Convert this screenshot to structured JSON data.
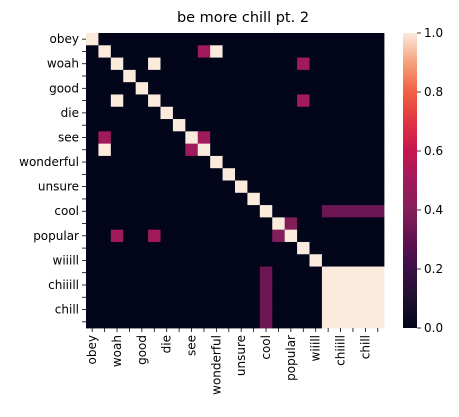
{
  "chart_data": {
    "type": "heatmap",
    "title": "be more chill pt. 2",
    "row_labels": [
      "obey",
      "",
      "woah",
      "",
      "good",
      "",
      "die",
      "",
      "see",
      "",
      "wonderful",
      "",
      "unsure",
      "",
      "cool",
      "",
      "popular",
      "",
      "wiiill",
      "",
      "chiiill",
      "",
      "chill",
      ""
    ],
    "col_labels": [
      "obey",
      "",
      "woah",
      "",
      "good",
      "",
      "die",
      "",
      "see",
      "",
      "wonderful",
      "",
      "unsure",
      "",
      "cool",
      "",
      "popular",
      "",
      "wiiill",
      "",
      "chiiill",
      "",
      "chill",
      ""
    ],
    "values": [
      [
        1,
        0,
        0,
        0,
        0,
        0,
        0,
        0,
        0,
        0,
        0,
        0,
        0,
        0,
        0,
        0,
        0,
        0,
        0,
        0,
        0,
        0,
        0,
        0
      ],
      [
        0,
        1,
        0,
        0,
        0,
        0,
        0,
        0,
        0,
        0.5,
        1,
        0,
        0,
        0,
        0,
        0,
        0,
        0,
        0,
        0,
        0,
        0,
        0,
        0
      ],
      [
        0,
        0,
        1,
        0,
        0,
        1,
        0,
        0,
        0,
        0,
        0,
        0,
        0,
        0,
        0,
        0,
        0,
        0.5,
        0,
        0,
        0,
        0,
        0,
        0
      ],
      [
        0,
        0,
        0,
        1,
        0,
        0,
        0,
        0,
        0,
        0,
        0,
        0,
        0,
        0,
        0,
        0,
        0,
        0,
        0,
        0,
        0,
        0,
        0,
        0
      ],
      [
        0,
        0,
        0,
        0,
        1,
        0,
        0,
        0,
        0,
        0,
        0,
        0,
        0,
        0,
        0,
        0,
        0,
        0,
        0,
        0,
        0,
        0,
        0,
        0
      ],
      [
        0,
        0,
        1,
        0,
        0,
        1,
        0,
        0,
        0,
        0,
        0,
        0,
        0,
        0,
        0,
        0,
        0,
        0.5,
        0,
        0,
        0,
        0,
        0,
        0
      ],
      [
        0,
        0,
        0,
        0,
        0,
        0,
        1,
        0,
        0,
        0,
        0,
        0,
        0,
        0,
        0,
        0,
        0,
        0,
        0,
        0,
        0,
        0,
        0,
        0
      ],
      [
        0,
        0,
        0,
        0,
        0,
        0,
        0,
        1,
        0,
        0,
        0,
        0,
        0,
        0,
        0,
        0,
        0,
        0,
        0,
        0,
        0,
        0,
        0,
        0
      ],
      [
        0,
        0.5,
        0,
        0,
        0,
        0,
        0,
        0,
        1,
        0.5,
        0,
        0,
        0,
        0,
        0,
        0,
        0,
        0,
        0,
        0,
        0,
        0,
        0,
        0
      ],
      [
        0,
        1,
        0,
        0,
        0,
        0,
        0,
        0,
        0.5,
        1,
        0,
        0,
        0,
        0,
        0,
        0,
        0,
        0,
        0,
        0,
        0,
        0,
        0,
        0
      ],
      [
        0,
        0,
        0,
        0,
        0,
        0,
        0,
        0,
        0,
        0,
        1,
        0,
        0,
        0,
        0,
        0,
        0,
        0,
        0,
        0,
        0,
        0,
        0,
        0
      ],
      [
        0,
        0,
        0,
        0,
        0,
        0,
        0,
        0,
        0,
        0,
        0,
        1,
        0,
        0,
        0,
        0,
        0,
        0,
        0,
        0,
        0,
        0,
        0,
        0
      ],
      [
        0,
        0,
        0,
        0,
        0,
        0,
        0,
        0,
        0,
        0,
        0,
        0,
        1,
        0,
        0,
        0,
        0,
        0,
        0,
        0,
        0,
        0,
        0,
        0
      ],
      [
        0,
        0,
        0,
        0,
        0,
        0,
        0,
        0,
        0,
        0,
        0,
        0,
        0,
        1,
        0,
        0,
        0,
        0,
        0,
        0,
        0,
        0,
        0,
        0
      ],
      [
        0,
        0,
        0,
        0,
        0,
        0,
        0,
        0,
        0,
        0,
        0,
        0,
        0,
        0,
        1,
        0,
        0,
        0,
        0,
        0.33,
        0.33,
        0.33,
        0.33,
        0.33
      ],
      [
        0,
        0,
        0,
        0,
        0,
        0,
        0,
        0,
        0,
        0,
        0,
        0,
        0,
        0,
        0,
        1,
        0.4,
        0,
        0,
        0,
        0,
        0,
        0,
        0
      ],
      [
        0,
        0,
        0.5,
        0,
        0,
        0.5,
        0,
        0,
        0,
        0,
        0,
        0,
        0,
        0,
        0,
        0.4,
        1,
        0,
        0,
        0,
        0,
        0,
        0,
        0
      ],
      [
        0,
        0,
        0,
        0,
        0,
        0,
        0,
        0,
        0,
        0,
        0,
        0,
        0,
        0,
        0,
        0,
        0,
        1,
        0,
        0,
        0,
        0,
        0,
        0
      ],
      [
        0,
        0,
        0,
        0,
        0,
        0,
        0,
        0,
        0,
        0,
        0,
        0,
        0,
        0,
        0,
        0,
        0,
        0,
        1,
        0,
        0,
        0,
        0,
        0
      ],
      [
        0,
        0,
        0,
        0,
        0,
        0,
        0,
        0,
        0,
        0,
        0,
        0,
        0,
        0,
        0.33,
        0,
        0,
        0,
        0,
        1,
        1,
        1,
        1,
        1
      ],
      [
        0,
        0,
        0,
        0,
        0,
        0,
        0,
        0,
        0,
        0,
        0,
        0,
        0,
        0,
        0.33,
        0,
        0,
        0,
        0,
        1,
        1,
        1,
        1,
        1
      ],
      [
        0,
        0,
        0,
        0,
        0,
        0,
        0,
        0,
        0,
        0,
        0,
        0,
        0,
        0,
        0.33,
        0,
        0,
        0,
        0,
        1,
        1,
        1,
        1,
        1
      ],
      [
        0,
        0,
        0,
        0,
        0,
        0,
        0,
        0,
        0,
        0,
        0,
        0,
        0,
        0,
        0.33,
        0,
        0,
        0,
        0,
        1,
        1,
        1,
        1,
        1
      ],
      [
        0,
        0,
        0,
        0,
        0,
        0,
        0,
        0,
        0,
        0,
        0,
        0,
        0,
        0,
        0.33,
        0,
        0,
        0,
        0,
        1,
        1,
        1,
        1,
        1
      ]
    ],
    "vmin": 0,
    "vmax": 1,
    "colormap": "rocket",
    "colorbar_ticks": [
      "0.0",
      "0.2",
      "0.4",
      "0.6",
      "0.8",
      "1.0"
    ]
  }
}
